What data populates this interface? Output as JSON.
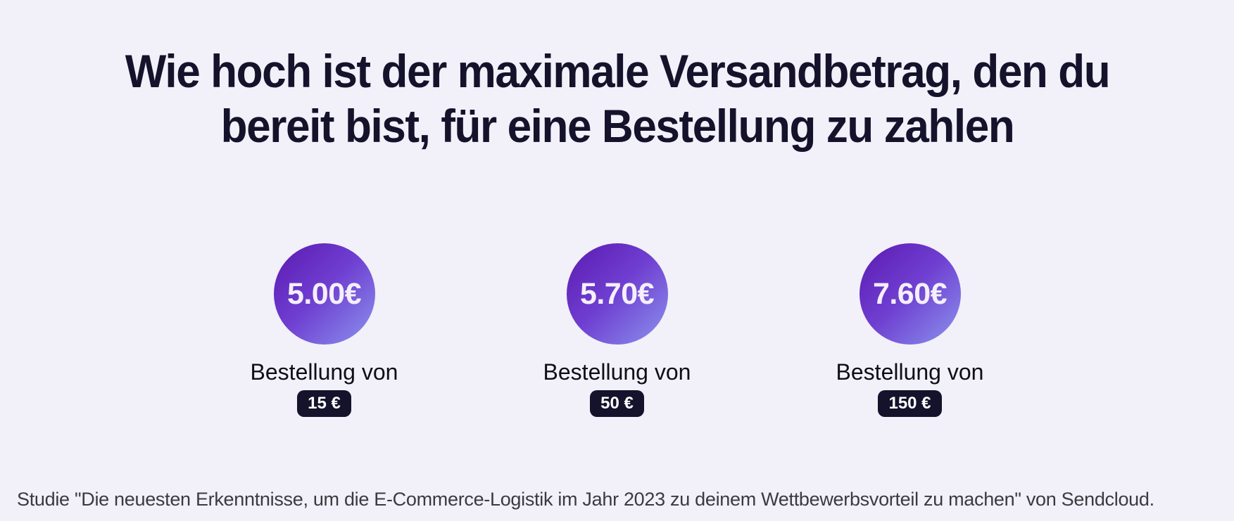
{
  "page": {
    "background_color": "#f2f0f8",
    "accent_dark": "#15122b",
    "bubble_gradient_start": "#5c19b0",
    "bubble_gradient_end": "#8b94ee"
  },
  "title": {
    "full": "Wie hoch ist der maximale Versandbetrag, den du bereit bist, für eine Bestellung zu zahlen",
    "line1": "Wie hoch ist der maximale Versandbetrag, den du",
    "line2": "bereit bist, für eine Bestellung zu zahlen"
  },
  "items": [
    {
      "value": "5.00€",
      "label": "Bestellung von",
      "badge": "15 €"
    },
    {
      "value": "5.70€",
      "label": "Bestellung von",
      "badge": "50 €"
    },
    {
      "value": "7.60€",
      "label": "Bestellung von",
      "badge": "150 €"
    }
  ],
  "footer": {
    "text": "Studie \"Die neuesten Erkenntnisse, um die E-Commerce-Logistik im Jahr 2023 zu deinem Wettbewerbsvorteil zu machen\" von Sendcloud."
  },
  "chart_data": {
    "type": "bar",
    "variant": "bubble-infographic",
    "title": "Wie hoch ist der maximale Versandbetrag, den du bereit bist, für eine Bestellung zu zahlen",
    "categories": [
      "Bestellung von 15 €",
      "Bestellung von 50 €",
      "Bestellung von 150 €"
    ],
    "values": [
      5.0,
      5.7,
      7.6
    ],
    "unit": "€",
    "value_labels": [
      "5.00€",
      "5.70€",
      "7.60€"
    ],
    "legend": "none",
    "source": "Studie \"Die neuesten Erkenntnisse, um die E-Commerce-Logistik im Jahr 2023 zu deinem Wettbewerbsvorteil zu machen\" von Sendcloud."
  }
}
